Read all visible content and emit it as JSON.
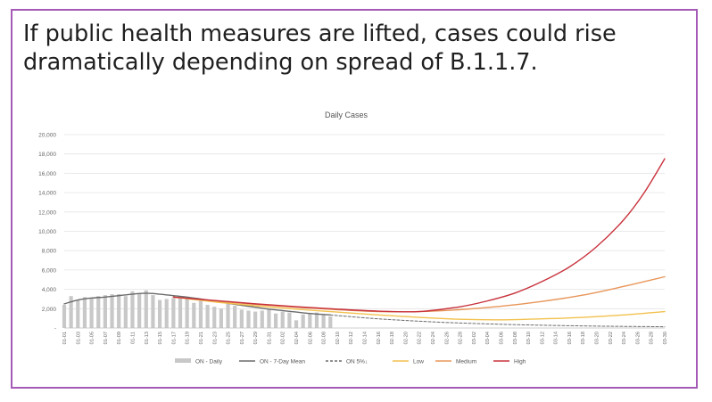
{
  "slide": {
    "headline": "If public health measures are lifted, cases could rise dramatically depending on spread of B.1.1.7.",
    "frame_color": "#a45ab6"
  },
  "chart_data": {
    "type": "line",
    "title": "Daily Cases",
    "xlabel": "",
    "ylabel": "",
    "ylim": [
      0,
      20000
    ],
    "yticks": [
      0,
      2000,
      4000,
      6000,
      8000,
      10000,
      12000,
      14000,
      16000,
      18000,
      20000
    ],
    "ytick_labels": [
      "-",
      "2,000",
      "4,000",
      "6,000",
      "8,000",
      "10,000",
      "12,000",
      "14,000",
      "16,000",
      "18,000",
      "20,000"
    ],
    "x_tick_labels": [
      "01-01",
      "01-03",
      "01-05",
      "01-07",
      "01-09",
      "01-11",
      "01-13",
      "01-15",
      "01-17",
      "01-19",
      "01-21",
      "01-23",
      "01-25",
      "01-27",
      "01-29",
      "01-31",
      "02-02",
      "02-04",
      "02-06",
      "02-08",
      "02-10",
      "02-12",
      "02-14",
      "02-16",
      "02-18",
      "02-20",
      "02-22",
      "02-24",
      "02-26",
      "02-28",
      "03-02",
      "03-04",
      "03-06",
      "03-08",
      "03-10",
      "03-12",
      "03-14",
      "03-16",
      "03-18",
      "03-20",
      "03-22",
      "03-24",
      "03-26",
      "03-28",
      "03-30"
    ],
    "x_range_days": [
      0,
      88
    ],
    "grid": true,
    "legend_position": "bottom",
    "legend": [
      "ON - Daily",
      "ON - 7-Day Mean",
      "ON 5%↓",
      "Low",
      "Medium",
      "High"
    ],
    "series": [
      {
        "name": "ON - Daily",
        "type": "bar",
        "color": "#c8c8c8",
        "x": [
          0,
          1,
          2,
          3,
          4,
          5,
          6,
          7,
          8,
          9,
          10,
          11,
          12,
          13,
          14,
          15,
          16,
          17,
          18,
          19,
          20,
          21,
          22,
          23,
          24,
          25,
          26,
          27,
          28,
          29,
          30,
          31,
          32,
          33,
          34,
          35,
          36,
          37,
          38,
          39
        ],
        "values": [
          2400,
          3300,
          2900,
          3200,
          3100,
          3300,
          3400,
          3500,
          3500,
          3300,
          3800,
          3600,
          3900,
          3400,
          2900,
          3000,
          3100,
          3300,
          3000,
          2600,
          2800,
          2400,
          2200,
          2000,
          2500,
          2300,
          1900,
          1800,
          1700,
          1800,
          1900,
          1500,
          1700,
          1600,
          800,
          1400,
          1500,
          1600,
          1400,
          1200
        ]
      },
      {
        "name": "ON - 7-Day Mean",
        "type": "line",
        "color": "#6b6b6b",
        "x": [
          0,
          2,
          4,
          6,
          8,
          10,
          12,
          14,
          16,
          18,
          20,
          22,
          24,
          26,
          28,
          30,
          32,
          34,
          36,
          38,
          39
        ],
        "values": [
          2500,
          2900,
          3100,
          3200,
          3350,
          3500,
          3600,
          3500,
          3350,
          3200,
          3000,
          2800,
          2550,
          2350,
          2150,
          1950,
          1800,
          1650,
          1500,
          1400,
          1350
        ]
      },
      {
        "name": "ON 5%↓",
        "type": "line",
        "style": "dashed",
        "color": "#6b6b6b",
        "x": [
          39,
          45,
          50,
          55,
          60,
          65,
          70,
          75,
          80,
          85,
          88
        ],
        "values": [
          1350,
          1000,
          780,
          600,
          470,
          370,
          290,
          230,
          180,
          150,
          130
        ]
      },
      {
        "name": "Low",
        "type": "line",
        "color": "#f2c14e",
        "x": [
          16,
          22,
          28,
          34,
          40,
          46,
          52,
          58,
          64,
          70,
          76,
          82,
          88
        ],
        "values": [
          3200,
          2700,
          2300,
          1950,
          1650,
          1350,
          1100,
          900,
          850,
          950,
          1100,
          1350,
          1700
        ]
      },
      {
        "name": "Medium",
        "type": "line",
        "color": "#e8965a",
        "x": [
          16,
          22,
          28,
          34,
          40,
          46,
          52,
          58,
          64,
          70,
          76,
          82,
          85,
          88
        ],
        "values": [
          3200,
          2800,
          2450,
          2150,
          1900,
          1700,
          1700,
          1900,
          2250,
          2750,
          3400,
          4300,
          4800,
          5300
        ]
      },
      {
        "name": "High",
        "type": "line",
        "color": "#c8323c",
        "x": [
          16,
          22,
          28,
          34,
          40,
          46,
          52,
          58,
          62,
          66,
          70,
          74,
          78,
          82,
          85,
          88
        ],
        "values": [
          3200,
          2850,
          2500,
          2200,
          1950,
          1750,
          1700,
          2200,
          2800,
          3600,
          4800,
          6300,
          8400,
          11200,
          14000,
          17500
        ]
      }
    ]
  }
}
